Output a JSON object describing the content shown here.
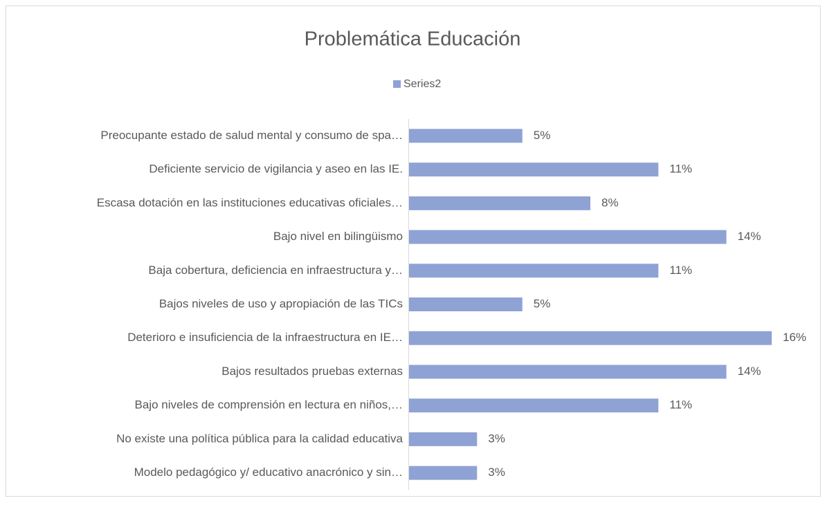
{
  "chart_data": {
    "type": "bar",
    "orientation": "horizontal",
    "title": "Problemática Educación",
    "categories": [
      "Preocupante estado de salud mental y consumo de spa…",
      "Deficiente servicio de vigilancia y aseo en las IE.",
      "Escasa dotación en las instituciones educativas oficiales…",
      "Bajo nivel en bilingüismo",
      "Baja cobertura, deficiencia en infraestructura y…",
      "Bajos niveles de uso y apropiación de las TICs",
      "Deterioro e insuficiencia de la infraestructura en IE…",
      "Bajos resultados pruebas externas",
      "Bajo niveles de comprensión en lectura en niños,…",
      "No existe una política pública para la calidad educativa",
      "Modelo pedagógico y/ educativo anacrónico y sin…"
    ],
    "series": [
      {
        "name": "Series2",
        "color": "#8fa2d4",
        "values": [
          5,
          11,
          8,
          14,
          11,
          5,
          16,
          14,
          11,
          3,
          3
        ],
        "value_labels": [
          "5%",
          "11%",
          "8%",
          "14%",
          "11%",
          "5%",
          "16%",
          "14%",
          "11%",
          "3%",
          "3%"
        ]
      }
    ],
    "legend": "top"
  }
}
